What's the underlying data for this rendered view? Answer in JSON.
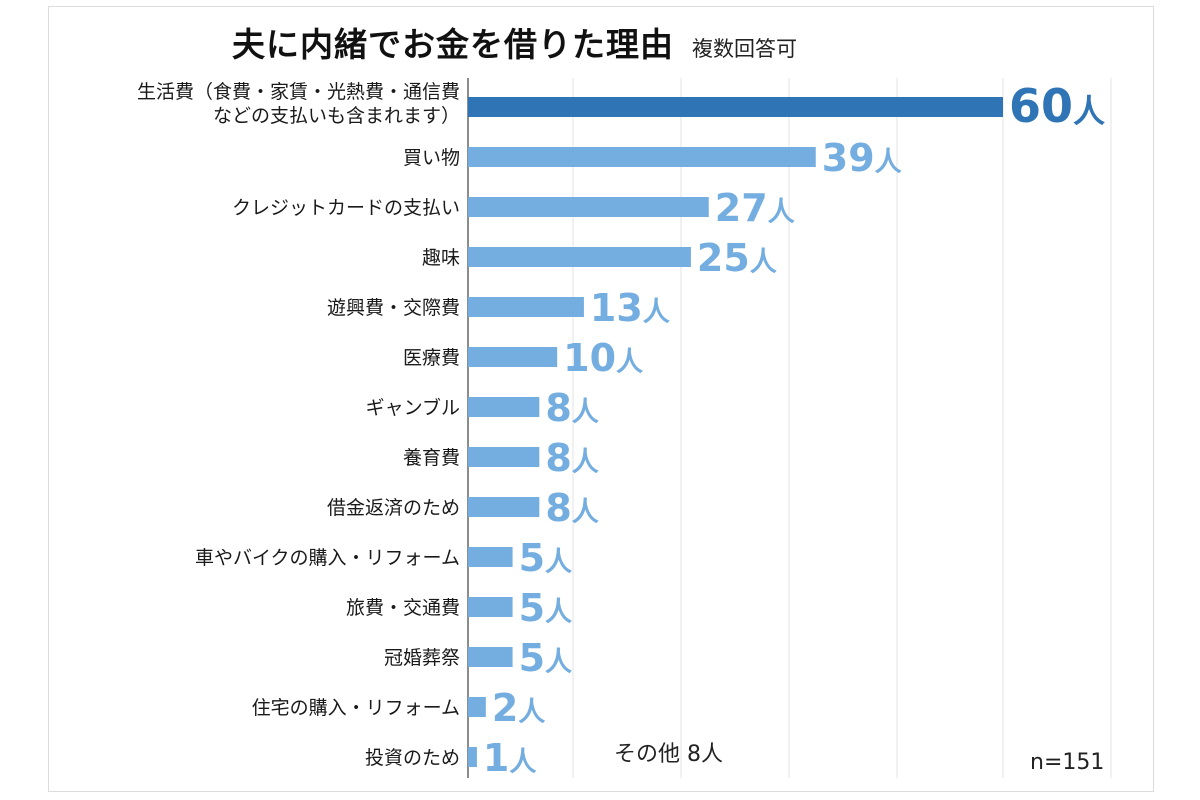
{
  "title": "夫に内緒でお金を借りた理由",
  "subtitle": "複数回答可",
  "other_note": "その他 8人",
  "n_note": "n=151",
  "colors": {
    "highlight_bar": "#2f74b5",
    "bar": "#74ade0",
    "highlight_label": "#2f74b5",
    "label": "#74ade0",
    "grid": "#e3e3e3",
    "axis": "#666666",
    "category_text": "#1a1a1a"
  },
  "chart_data": {
    "type": "bar",
    "orientation": "horizontal",
    "categories": [
      [
        "生活費（食費・家賃・光熱費・通信費",
        "などの支払いも含まれます）"
      ],
      [
        "買い物"
      ],
      [
        "クレジットカードの支払い"
      ],
      [
        "趣味"
      ],
      [
        "遊興費・交際費"
      ],
      [
        "医療費"
      ],
      [
        "ギャンブル"
      ],
      [
        "養育費"
      ],
      [
        "借金返済のため"
      ],
      [
        "車やバイクの購入・リフォーム"
      ],
      [
        "旅費・交通費"
      ],
      [
        "冠婚葬祭"
      ],
      [
        "住宅の購入・リフォーム"
      ],
      [
        "投資のため"
      ]
    ],
    "values": [
      60,
      39,
      27,
      25,
      13,
      10,
      8,
      8,
      8,
      5,
      5,
      5,
      2,
      1
    ],
    "value_unit": "人",
    "highlight_index": 0,
    "xlim": [
      0,
      60
    ],
    "grid": true
  }
}
